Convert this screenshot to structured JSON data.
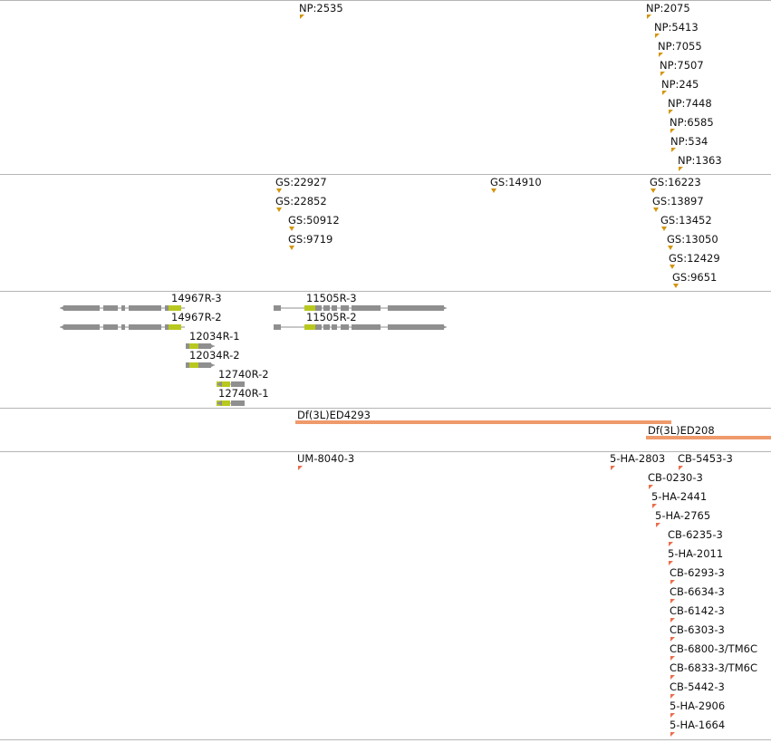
{
  "colors": {
    "insertion": "#d4950a",
    "gene": "#8f8f8f",
    "exon_highlight": "#b8c81e",
    "deficiency": "#ef9a6c",
    "stock": "#ec6d4b",
    "divider": "#b5b5b5"
  },
  "tracks": {
    "np_insertions": [
      "NP:2535",
      "NP:2075",
      "NP:5413",
      "NP:7055",
      "NP:7507",
      "NP:245",
      "NP:7448",
      "NP:6585",
      "NP:534",
      "NP:1363"
    ],
    "gs_insertions": [
      "GS:22927",
      "GS:22852",
      "GS:50912",
      "GS:9719",
      "GS:14910",
      "GS:16223",
      "GS:13897",
      "GS:13452",
      "GS:13050",
      "GS:12429",
      "GS:9651"
    ],
    "transcripts": [
      "14967R-3",
      "14967R-2",
      "12034R-1",
      "12034R-2",
      "12740R-2",
      "12740R-1",
      "11505R-3",
      "11505R-2"
    ],
    "deficiencies": [
      "Df(3L)ED4293",
      "Df(3L)ED208"
    ],
    "stocks": [
      "UM-8040-3",
      "5-HA-2803",
      "CB-5453-3",
      "CB-0230-3",
      "5-HA-2441",
      "5-HA-2765",
      "CB-6235-3",
      "5-HA-2011",
      "CB-6293-3",
      "CB-6634-3",
      "CB-6142-3",
      "CB-6303-3",
      "CB-6800-3/TM6C",
      "CB-6833-3/TM6C",
      "CB-5442-3",
      "5-HA-2906",
      "5-HA-1664"
    ]
  }
}
